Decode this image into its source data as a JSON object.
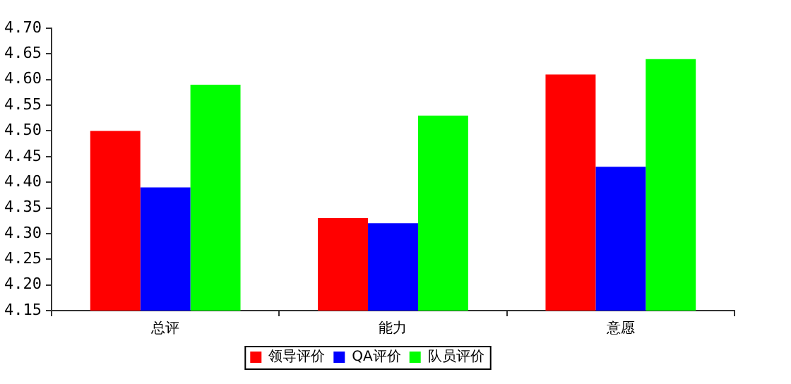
{
  "chart_data": {
    "type": "bar",
    "categories": [
      "总评",
      "能力",
      "意愿"
    ],
    "series": [
      {
        "name": "领导评价",
        "color": "#ff0000",
        "values": [
          4.5,
          4.33,
          4.61
        ]
      },
      {
        "name": "QA评价",
        "color": "#0000ff",
        "values": [
          4.39,
          4.32,
          4.43
        ]
      },
      {
        "name": "队员评价",
        "color": "#00ff00",
        "values": [
          4.59,
          4.53,
          4.64
        ]
      }
    ],
    "ylim": [
      4.15,
      4.7
    ],
    "yticks": [
      {
        "value": 4.15,
        "label": "4.15"
      },
      {
        "value": 4.2,
        "label": "4.20"
      },
      {
        "value": 4.25,
        "label": "4.25"
      },
      {
        "value": 4.3,
        "label": "4.30"
      },
      {
        "value": 4.35,
        "label": "4.35"
      },
      {
        "value": 4.4,
        "label": "4.40"
      },
      {
        "value": 4.45,
        "label": "4.45"
      },
      {
        "value": 4.5,
        "label": "4.50"
      },
      {
        "value": 4.55,
        "label": "4.55"
      },
      {
        "value": 4.6,
        "label": "4.60"
      },
      {
        "value": 4.65,
        "label": "4.65"
      },
      {
        "value": 4.7,
        "label": "4.70"
      }
    ],
    "grid": false,
    "legend": "bottom"
  }
}
